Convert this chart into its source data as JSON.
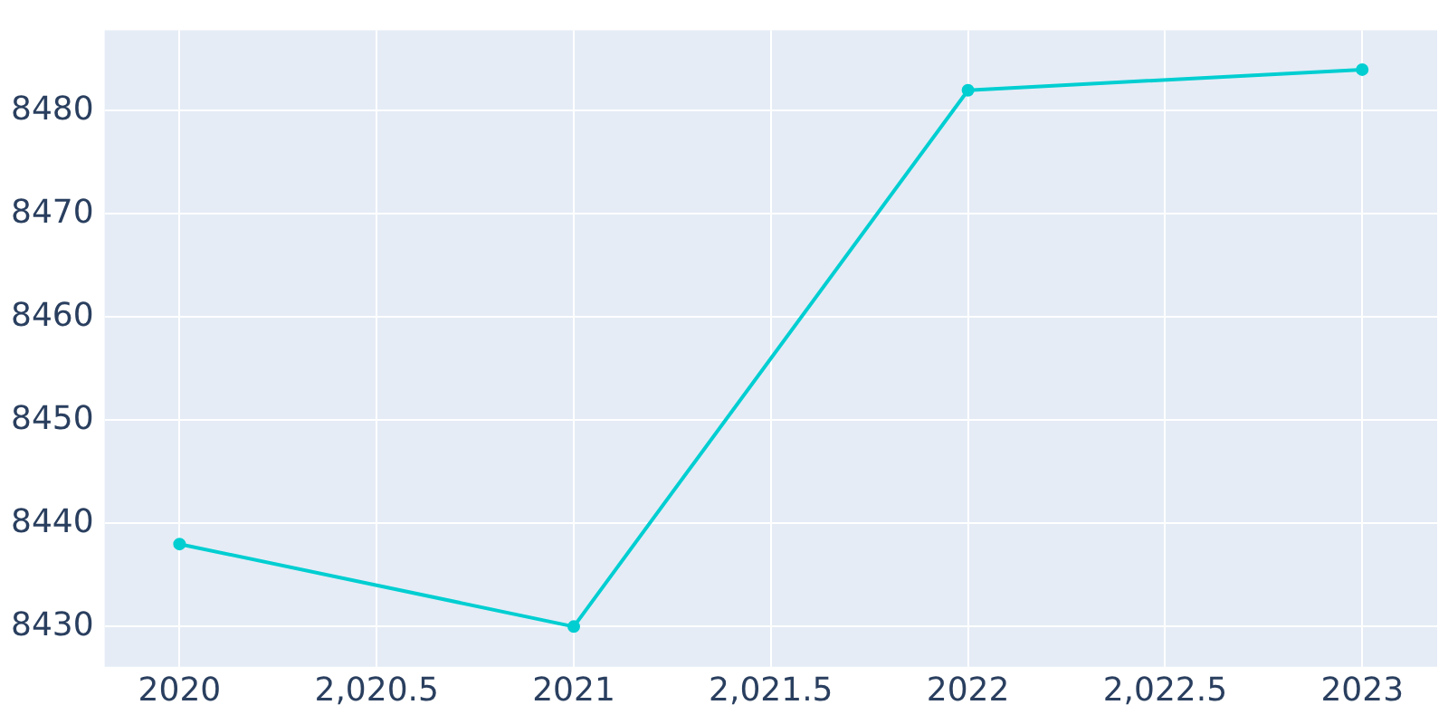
{
  "chart_data": {
    "type": "line",
    "x": [
      2020,
      2021,
      2022,
      2023
    ],
    "values": [
      8438,
      8430,
      8482,
      8484
    ],
    "color": "#00ced1",
    "marker": "circle",
    "grid": true,
    "xlim": [
      2019.81,
      2023.19
    ],
    "ylim": [
      8426.1,
      8487.8
    ],
    "xticks": [
      2020,
      {
        "value": 2020.5,
        "label": "2,020.5"
      },
      2021,
      {
        "value": 2021.5,
        "label": "2,021.5"
      },
      2022,
      {
        "value": 2022.5,
        "label": "2,022.5"
      },
      2023
    ],
    "yticks": [
      8430,
      8440,
      8450,
      8460,
      8470,
      8480
    ]
  }
}
